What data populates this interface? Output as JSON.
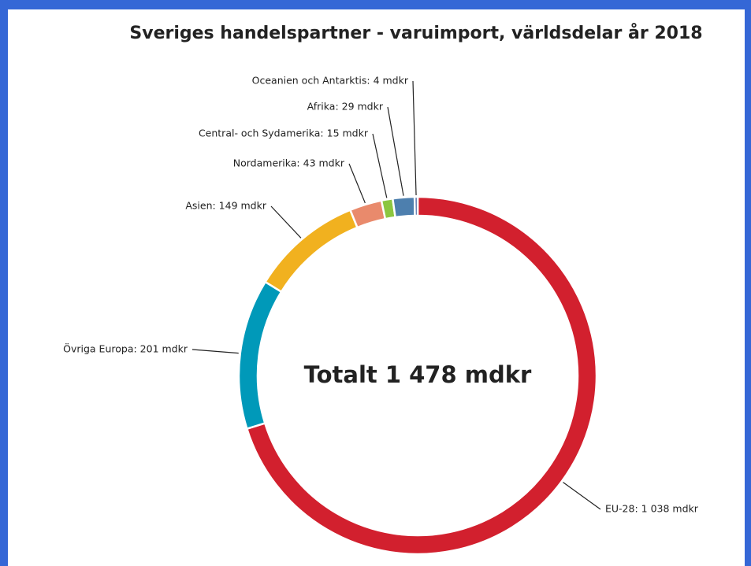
{
  "chart_data": {
    "type": "donut",
    "title": "Sveriges handelspartner - varuimport, världsdelar år 2018",
    "center_label": "Totalt 1 478 mdkr",
    "values": [
      1038,
      201,
      149,
      43,
      15,
      29,
      4
    ],
    "value_labels": [
      "EU-28: 1 038 mdkr",
      "Övriga Europa: 201 mdkr",
      "Asien: 149 mdkr",
      "Nordamerika: 43 mdkr",
      "Central- och Sydamerika: 15 mdkr",
      "Afrika: 29 mdkr",
      "Oceanien och Antarktis: 4 mdkr"
    ],
    "colors": [
      "#d2202e",
      "#0099b9",
      "#f1b11f",
      "#e98a6c",
      "#8cc63f",
      "#4d7fae",
      "#3b5f9d"
    ]
  }
}
